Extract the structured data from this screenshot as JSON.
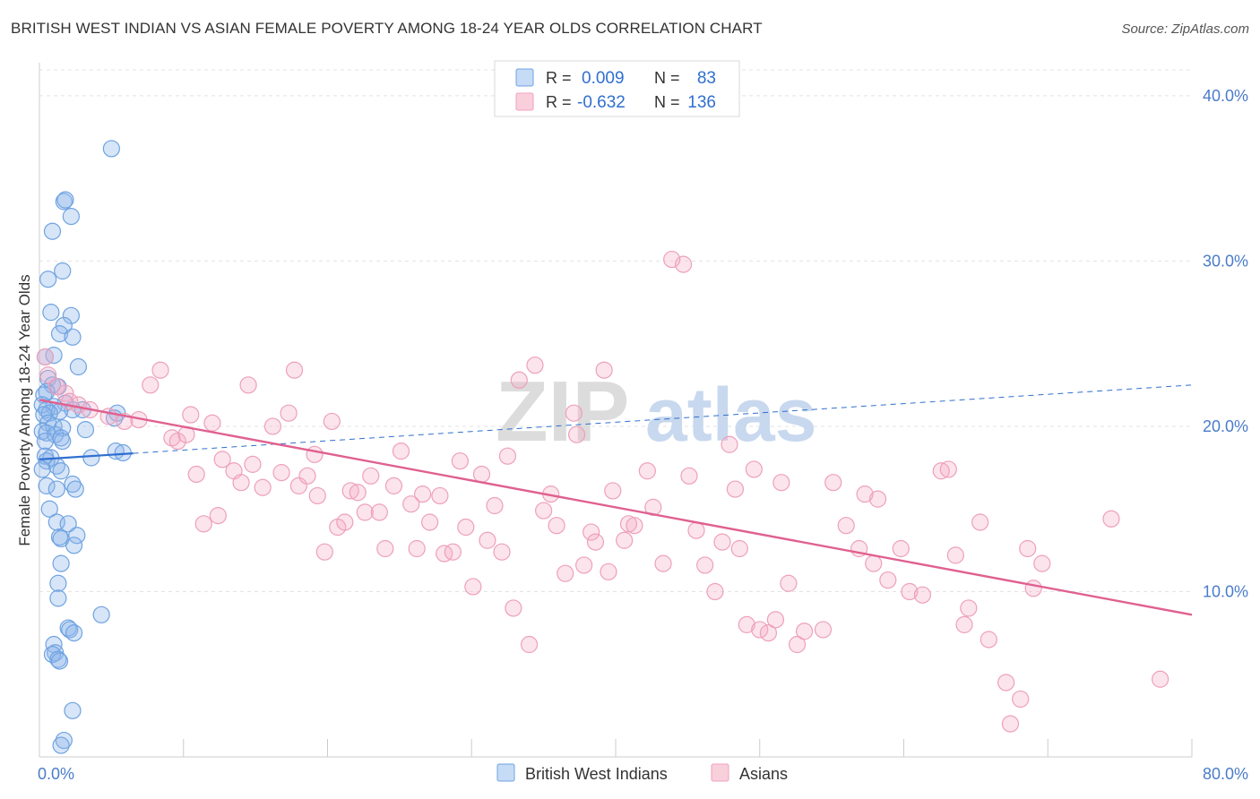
{
  "title": "BRITISH WEST INDIAN VS ASIAN FEMALE POVERTY AMONG 18-24 YEAR OLDS CORRELATION CHART",
  "source": "Source: ZipAtlas.com",
  "watermark": {
    "part1": "ZIP",
    "part2": "atlas"
  },
  "colors": {
    "blue": "#6fa3e0",
    "blue_line": "#2f6fd0",
    "pink": "#f0a0bb",
    "pink_line": "#e0608f",
    "tick_label": "#4a7cc9"
  },
  "chart_data": {
    "type": "scatter",
    "title": "BRITISH WEST INDIAN VS ASIAN FEMALE POVERTY AMONG 18-24 YEAR OLDS CORRELATION CHART",
    "xlabel": "",
    "ylabel": "Female Poverty Among 18-24 Year Olds",
    "xlim": [
      0,
      80
    ],
    "ylim": [
      0,
      42
    ],
    "x_tick_labels": [
      "0.0%",
      "80.0%"
    ],
    "y_ticks": [
      10,
      20,
      30,
      40
    ],
    "y_tick_labels": [
      "10.0%",
      "20.0%",
      "30.0%",
      "40.0%"
    ],
    "grid": "horizontal dashed",
    "legend_position": "top-center",
    "legend": [
      {
        "r_label": "R =",
        "r_value": "0.009",
        "n_label": "N =",
        "n_value": "83"
      },
      {
        "r_label": "R =",
        "r_value": "-0.632",
        "n_label": "N =",
        "n_value": "136"
      }
    ],
    "bottom_legend": [
      "British West Indians",
      "Asians"
    ],
    "series": [
      {
        "name": "British West Indians",
        "color": "#6fa3e0",
        "trend": {
          "x": [
            0,
            80
          ],
          "y": [
            18.0,
            22.5
          ],
          "solid_until": 6.5
        },
        "points": [
          [
            5.0,
            36.8
          ],
          [
            1.7,
            33.6
          ],
          [
            1.8,
            33.7
          ],
          [
            2.2,
            32.7
          ],
          [
            0.9,
            31.8
          ],
          [
            1.6,
            29.4
          ],
          [
            0.6,
            28.9
          ],
          [
            0.8,
            26.9
          ],
          [
            2.2,
            26.7
          ],
          [
            1.7,
            26.1
          ],
          [
            1.4,
            25.6
          ],
          [
            2.3,
            25.4
          ],
          [
            1.0,
            24.3
          ],
          [
            0.4,
            24.2
          ],
          [
            2.7,
            23.6
          ],
          [
            0.6,
            22.9
          ],
          [
            0.9,
            22.5
          ],
          [
            1.3,
            22.4
          ],
          [
            0.5,
            22.1
          ],
          [
            0.3,
            21.9
          ],
          [
            1.8,
            21.4
          ],
          [
            0.2,
            21.3
          ],
          [
            1.0,
            21.2
          ],
          [
            0.5,
            21.0
          ],
          [
            2.3,
            21.0
          ],
          [
            3.0,
            21.0
          ],
          [
            1.4,
            20.9
          ],
          [
            0.7,
            20.8
          ],
          [
            0.3,
            20.7
          ],
          [
            5.4,
            20.8
          ],
          [
            5.2,
            20.5
          ],
          [
            0.6,
            20.2
          ],
          [
            1.0,
            20.0
          ],
          [
            1.6,
            19.9
          ],
          [
            3.2,
            19.8
          ],
          [
            0.2,
            19.7
          ],
          [
            0.5,
            19.6
          ],
          [
            1.1,
            19.5
          ],
          [
            1.5,
            19.3
          ],
          [
            0.4,
            19.1
          ],
          [
            1.6,
            19.1
          ],
          [
            5.3,
            18.5
          ],
          [
            5.8,
            18.4
          ],
          [
            0.4,
            18.2
          ],
          [
            0.8,
            18.1
          ],
          [
            3.6,
            18.1
          ],
          [
            0.5,
            17.9
          ],
          [
            1.2,
            17.6
          ],
          [
            0.2,
            17.4
          ],
          [
            1.5,
            17.3
          ],
          [
            2.3,
            16.5
          ],
          [
            0.5,
            16.4
          ],
          [
            1.2,
            16.2
          ],
          [
            2.5,
            16.2
          ],
          [
            0.7,
            15.0
          ],
          [
            1.2,
            14.2
          ],
          [
            2.0,
            14.1
          ],
          [
            2.6,
            13.4
          ],
          [
            1.4,
            13.3
          ],
          [
            1.5,
            13.2
          ],
          [
            2.4,
            12.8
          ],
          [
            1.5,
            11.7
          ],
          [
            1.3,
            10.5
          ],
          [
            1.3,
            9.6
          ],
          [
            4.3,
            8.6
          ],
          [
            2.0,
            7.8
          ],
          [
            2.1,
            7.7
          ],
          [
            2.4,
            7.5
          ],
          [
            1.0,
            6.8
          ],
          [
            1.1,
            6.3
          ],
          [
            0.9,
            6.2
          ],
          [
            1.3,
            5.9
          ],
          [
            1.4,
            5.8
          ],
          [
            2.3,
            2.8
          ],
          [
            1.7,
            1.0
          ],
          [
            1.5,
            0.7
          ]
        ]
      },
      {
        "name": "Asians",
        "color": "#f0a0bb",
        "trend": {
          "x": [
            0,
            80
          ],
          "y": [
            21.6,
            8.6
          ]
        },
        "points": [
          [
            0.4,
            24.2
          ],
          [
            0.6,
            23.1
          ],
          [
            1.2,
            22.4
          ],
          [
            1.8,
            22.0
          ],
          [
            2.1,
            21.5
          ],
          [
            2.7,
            21.3
          ],
          [
            3.5,
            21.0
          ],
          [
            4.8,
            20.6
          ],
          [
            5.9,
            20.3
          ],
          [
            6.9,
            20.4
          ],
          [
            7.7,
            22.5
          ],
          [
            8.4,
            23.4
          ],
          [
            9.2,
            19.3
          ],
          [
            9.6,
            19.1
          ],
          [
            10.2,
            19.5
          ],
          [
            10.5,
            20.7
          ],
          [
            10.9,
            17.1
          ],
          [
            11.4,
            14.1
          ],
          [
            12.0,
            20.2
          ],
          [
            12.4,
            14.6
          ],
          [
            12.7,
            18.0
          ],
          [
            13.5,
            17.3
          ],
          [
            14.0,
            16.6
          ],
          [
            14.5,
            22.5
          ],
          [
            14.8,
            17.7
          ],
          [
            15.5,
            16.3
          ],
          [
            16.2,
            20.0
          ],
          [
            16.8,
            17.2
          ],
          [
            17.3,
            20.8
          ],
          [
            17.7,
            23.4
          ],
          [
            18.0,
            16.4
          ],
          [
            18.6,
            17.0
          ],
          [
            19.1,
            18.3
          ],
          [
            19.3,
            15.8
          ],
          [
            19.8,
            12.4
          ],
          [
            20.3,
            20.3
          ],
          [
            20.7,
            13.9
          ],
          [
            21.2,
            14.2
          ],
          [
            21.6,
            16.1
          ],
          [
            22.1,
            16.0
          ],
          [
            22.6,
            14.8
          ],
          [
            23.0,
            17.0
          ],
          [
            23.6,
            14.8
          ],
          [
            24.0,
            12.6
          ],
          [
            24.6,
            16.4
          ],
          [
            25.1,
            18.5
          ],
          [
            25.8,
            15.3
          ],
          [
            26.2,
            12.6
          ],
          [
            26.6,
            15.9
          ],
          [
            27.1,
            14.2
          ],
          [
            27.8,
            15.8
          ],
          [
            28.1,
            12.3
          ],
          [
            28.7,
            12.4
          ],
          [
            29.2,
            17.9
          ],
          [
            29.6,
            13.9
          ],
          [
            30.1,
            10.3
          ],
          [
            30.7,
            17.1
          ],
          [
            31.1,
            13.1
          ],
          [
            31.6,
            15.2
          ],
          [
            32.1,
            12.4
          ],
          [
            32.5,
            18.2
          ],
          [
            32.9,
            9.0
          ],
          [
            33.3,
            22.8
          ],
          [
            34.0,
            6.8
          ],
          [
            34.4,
            23.7
          ],
          [
            35.0,
            14.9
          ],
          [
            35.5,
            15.9
          ],
          [
            35.9,
            14.0
          ],
          [
            36.5,
            11.1
          ],
          [
            37.1,
            20.8
          ],
          [
            37.3,
            19.5
          ],
          [
            37.8,
            11.6
          ],
          [
            38.3,
            13.6
          ],
          [
            38.6,
            13.0
          ],
          [
            39.2,
            23.4
          ],
          [
            39.5,
            11.2
          ],
          [
            39.8,
            16.1
          ],
          [
            40.6,
            13.1
          ],
          [
            40.9,
            14.1
          ],
          [
            41.3,
            14.0
          ],
          [
            42.2,
            17.3
          ],
          [
            42.6,
            15.1
          ],
          [
            43.3,
            11.7
          ],
          [
            43.9,
            30.1
          ],
          [
            44.7,
            29.8
          ],
          [
            45.1,
            17.0
          ],
          [
            45.6,
            13.7
          ],
          [
            46.2,
            11.6
          ],
          [
            46.9,
            10.0
          ],
          [
            47.4,
            13.0
          ],
          [
            47.9,
            18.9
          ],
          [
            48.3,
            16.2
          ],
          [
            48.6,
            12.6
          ],
          [
            49.1,
            8.0
          ],
          [
            49.6,
            17.4
          ],
          [
            50.0,
            7.7
          ],
          [
            50.6,
            7.5
          ],
          [
            51.1,
            8.3
          ],
          [
            51.5,
            16.6
          ],
          [
            52.0,
            10.5
          ],
          [
            52.6,
            6.8
          ],
          [
            53.1,
            7.6
          ],
          [
            54.4,
            7.7
          ],
          [
            55.1,
            16.6
          ],
          [
            56.0,
            14.0
          ],
          [
            56.9,
            12.6
          ],
          [
            57.3,
            15.9
          ],
          [
            57.9,
            11.7
          ],
          [
            58.2,
            15.6
          ],
          [
            58.9,
            10.7
          ],
          [
            59.8,
            12.6
          ],
          [
            60.4,
            10.0
          ],
          [
            61.3,
            9.8
          ],
          [
            62.6,
            17.3
          ],
          [
            63.1,
            17.4
          ],
          [
            63.6,
            12.2
          ],
          [
            64.2,
            8.0
          ],
          [
            64.5,
            9.0
          ],
          [
            65.3,
            14.2
          ],
          [
            65.9,
            7.1
          ],
          [
            67.1,
            4.5
          ],
          [
            67.4,
            2.0
          ],
          [
            68.1,
            3.5
          ],
          [
            68.6,
            12.6
          ],
          [
            69.0,
            10.2
          ],
          [
            69.6,
            11.7
          ],
          [
            74.4,
            14.4
          ],
          [
            77.8,
            4.7
          ]
        ]
      }
    ]
  }
}
